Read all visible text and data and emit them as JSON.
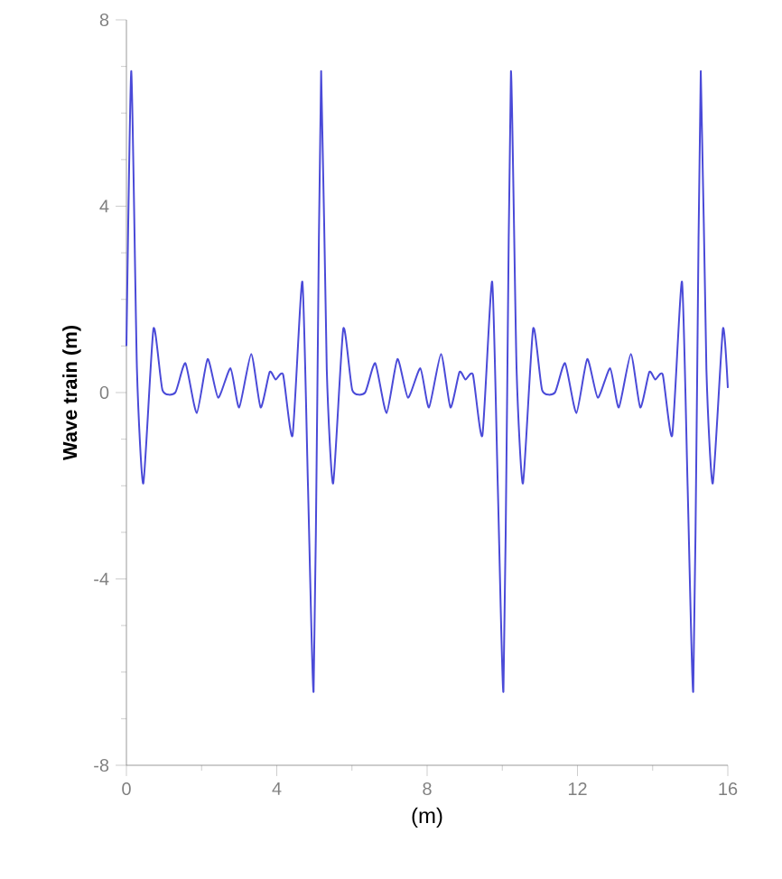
{
  "chart_data": {
    "type": "line",
    "xlabel": "(m)",
    "ylabel": "Wave train (m)",
    "color": "#4a4ad8",
    "marker": "none",
    "line_style": "solid",
    "xlim": [
      0,
      16
    ],
    "ylim": [
      -8,
      8
    ],
    "xticks": [
      0,
      4,
      8,
      12,
      16
    ],
    "yticks": [
      -8,
      -4,
      0,
      4,
      8
    ],
    "x": [
      0,
      0.13,
      0.28,
      0.45,
      0.72,
      0.96,
      1.3,
      1.57,
      1.87,
      2.16,
      2.44,
      2.77,
      3.0,
      3.32,
      3.57,
      3.81,
      3.97,
      4.17,
      4.42,
      4.68,
      4.83,
      4.98,
      5.08,
      5.18,
      5.33,
      5.5,
      5.77,
      6.01,
      6.35,
      6.62,
      6.92,
      7.21,
      7.49,
      7.82,
      8.05,
      8.37,
      8.62,
      8.86,
      9.02,
      9.22,
      9.47,
      9.73,
      9.88,
      10.03,
      10.13,
      10.23,
      10.38,
      10.55,
      10.82,
      11.06,
      11.4,
      11.67,
      11.97,
      12.26,
      12.54,
      12.87,
      13.1,
      13.42,
      13.67,
      13.91,
      14.07,
      14.27,
      14.52,
      14.78,
      14.93,
      15.08,
      15.18,
      15.28,
      15.43,
      15.6,
      15.87,
      16.0
    ],
    "values": [
      1.0,
      6.9,
      0.5,
      -1.95,
      1.37,
      0.05,
      0.0,
      0.63,
      -0.44,
      0.72,
      -0.11,
      0.52,
      -0.32,
      0.83,
      -0.32,
      0.44,
      0.28,
      0.38,
      -0.92,
      2.38,
      -2.0,
      -6.42,
      0,
      6.9,
      0.5,
      -1.95,
      1.37,
      0.05,
      0.0,
      0.63,
      -0.44,
      0.72,
      -0.11,
      0.52,
      -0.32,
      0.83,
      -0.32,
      0.44,
      0.28,
      0.38,
      -0.92,
      2.38,
      -2.0,
      -6.42,
      0,
      6.9,
      0.5,
      -1.95,
      1.37,
      0.05,
      0.0,
      0.63,
      -0.44,
      0.72,
      -0.11,
      0.52,
      -0.32,
      0.83,
      -0.32,
      0.44,
      0.28,
      0.38,
      -0.92,
      2.38,
      -2.0,
      -6.42,
      0,
      6.9,
      0.5,
      -1.95,
      1.37,
      0.1
    ]
  }
}
